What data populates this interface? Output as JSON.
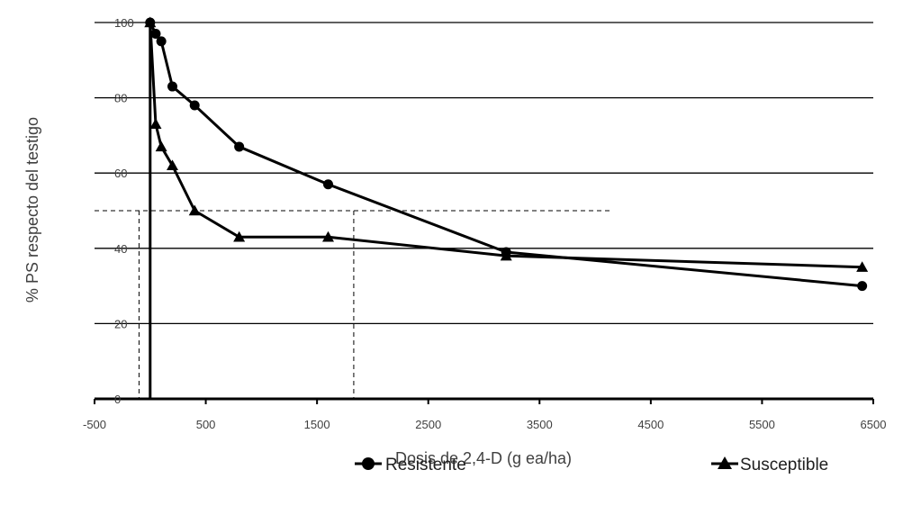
{
  "chart_data": {
    "type": "scatter",
    "title": "",
    "xlabel": "Dosis de 2,4-D (g ea/ha)",
    "ylabel": "% PS respecto del testigo",
    "xlim": [
      -500,
      6500
    ],
    "ylim": [
      0,
      100
    ],
    "x_ticks": [
      -500,
      500,
      1500,
      2500,
      3500,
      4500,
      5500,
      6500
    ],
    "y_ticks": [
      0,
      20,
      40,
      60,
      80,
      100
    ],
    "x_tick_labels": [
      "-500",
      "500",
      "1500",
      "2500",
      "3500",
      "4500",
      "5500",
      "6500"
    ],
    "y_tick_labels": [
      "0",
      "20",
      "40",
      "60",
      "80",
      "100"
    ],
    "grid": "horizontal",
    "legend_position": "bottom",
    "series": [
      {
        "name": "Resistente",
        "marker": "circle",
        "color": "#000000",
        "x": [
          0,
          50,
          100,
          200,
          400,
          800,
          1600,
          3200,
          6400
        ],
        "y": [
          100,
          97,
          95,
          83,
          78,
          67,
          57,
          39,
          30
        ]
      },
      {
        "name": "Susceptible",
        "marker": "triangle",
        "color": "#000000",
        "x": [
          0,
          50,
          100,
          200,
          400,
          800,
          1600,
          3200,
          6400
        ],
        "y": [
          100,
          73,
          67,
          62,
          50,
          43,
          43,
          38,
          35
        ]
      }
    ],
    "reference_lines": {
      "y50_dashed": 50,
      "susceptible_x50": -100,
      "resistente_x50": 1830
    }
  }
}
